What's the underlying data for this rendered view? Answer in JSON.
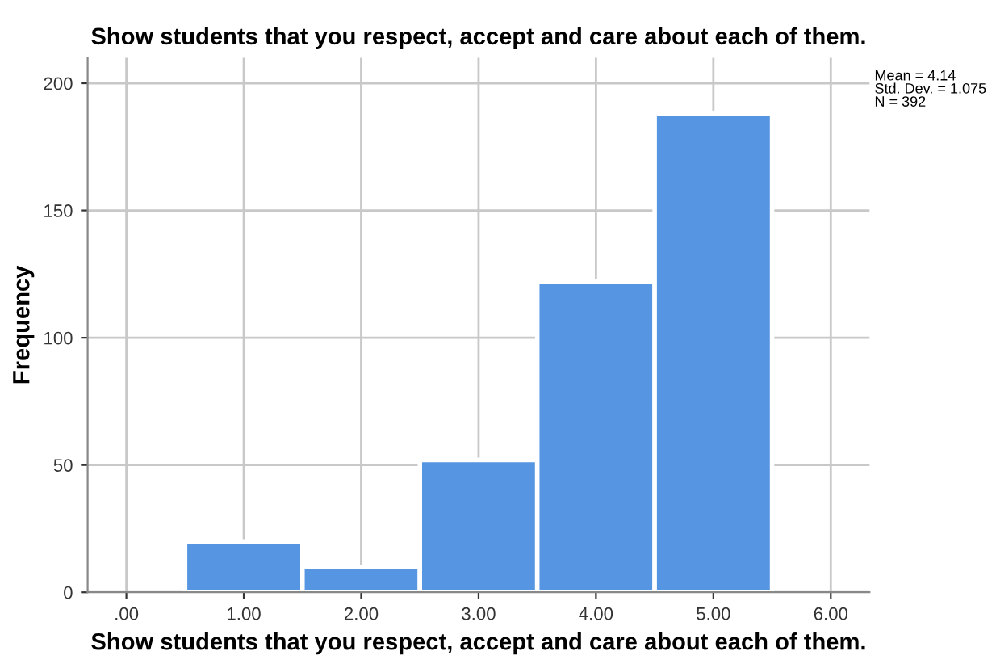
{
  "chart_data": {
    "type": "histogram",
    "title": "Show students that you respect, accept and care about each of them.",
    "xlabel": "Show students that you respect, accept and care about each of them.",
    "ylabel": "Frequency",
    "bins": [
      0.5,
      1.5,
      2.5,
      3.5,
      4.5,
      5.5
    ],
    "values": [
      20,
      10,
      52,
      122,
      188
    ],
    "color": "#5595e2",
    "xlim": [
      -0.33,
      6.33
    ],
    "xticks": [
      {
        "value": 0,
        "label": ".00"
      },
      {
        "value": 1,
        "label": "1.00"
      },
      {
        "value": 2,
        "label": "2.00"
      },
      {
        "value": 3,
        "label": "3.00"
      },
      {
        "value": 4,
        "label": "4.00"
      },
      {
        "value": 5,
        "label": "5.00"
      },
      {
        "value": 6,
        "label": "6.00"
      }
    ],
    "ylim": [
      0,
      210
    ],
    "yticks": [
      0,
      50,
      100,
      150,
      200
    ],
    "grid": true,
    "annotations": [
      "Mean = 4.14\nStd. Dev. = 1.075\nN = 392"
    ]
  }
}
